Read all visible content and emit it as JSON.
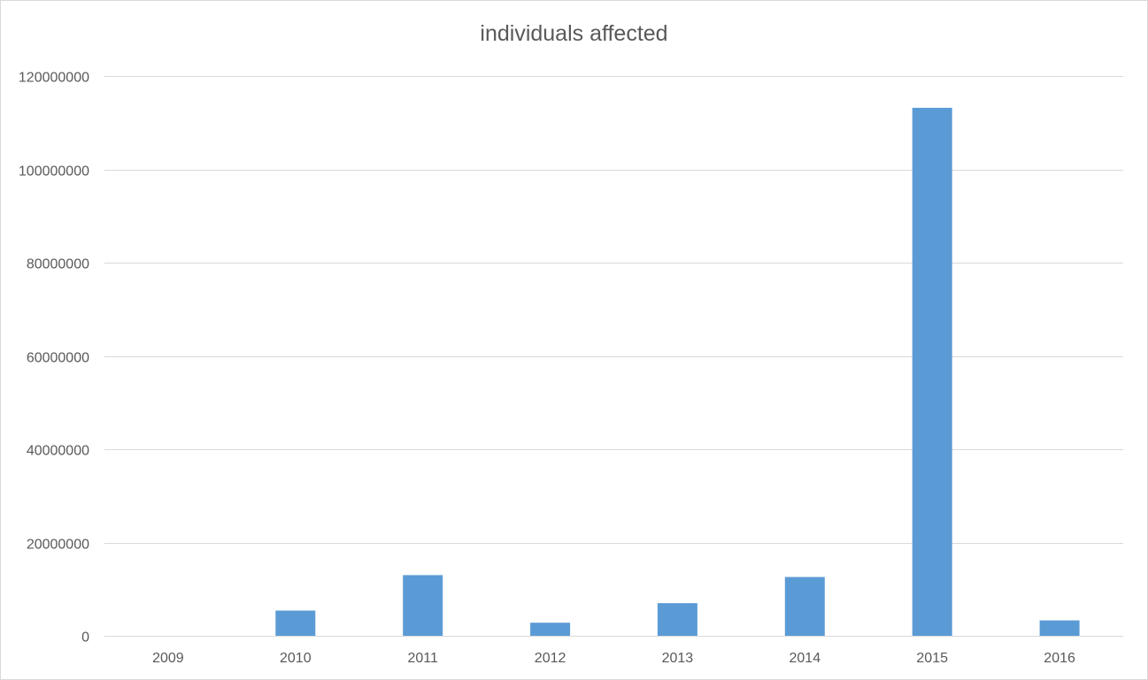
{
  "chart_data": {
    "type": "bar",
    "title": "individuals affected",
    "xlabel": "",
    "ylabel": "",
    "categories": [
      "2009",
      "2010",
      "2011",
      "2012",
      "2013",
      "2014",
      "2015",
      "2016"
    ],
    "series": [
      {
        "values": [
          0,
          5400000,
          13000000,
          2800000,
          7000000,
          12600000,
          113200000,
          3300000
        ]
      }
    ],
    "ylim": [
      0,
      120000000
    ],
    "yticks": [
      0,
      20000000,
      40000000,
      60000000,
      80000000,
      100000000,
      120000000
    ],
    "ytick_labels": [
      "0",
      "20000000",
      "40000000",
      "60000000",
      "80000000",
      "100000000",
      "120000000"
    ],
    "grid": true,
    "legend": "none",
    "colors": {
      "bar": "#5b9bd5",
      "grid": "#d9d9d9",
      "text": "#595959"
    }
  }
}
